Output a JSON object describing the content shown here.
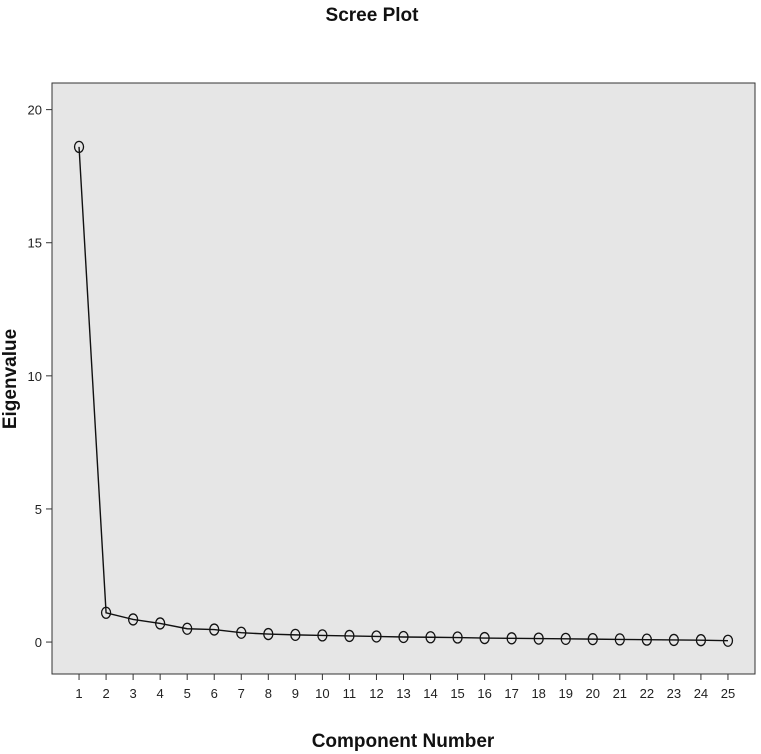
{
  "chart_data": {
    "type": "line",
    "title": "Scree Plot",
    "xlabel": "Component Number",
    "ylabel": "Eigenvalue",
    "x": [
      1,
      2,
      3,
      4,
      5,
      6,
      7,
      8,
      9,
      10,
      11,
      12,
      13,
      14,
      15,
      16,
      17,
      18,
      19,
      20,
      21,
      22,
      23,
      24,
      25
    ],
    "series": [
      {
        "name": "",
        "values": [
          18.6,
          1.1,
          0.85,
          0.7,
          0.5,
          0.47,
          0.35,
          0.3,
          0.27,
          0.25,
          0.23,
          0.21,
          0.19,
          0.18,
          0.17,
          0.15,
          0.14,
          0.13,
          0.12,
          0.11,
          0.1,
          0.09,
          0.08,
          0.07,
          0.05
        ]
      }
    ],
    "xticks": [
      "1",
      "2",
      "3",
      "4",
      "5",
      "6",
      "7",
      "8",
      "9",
      "10",
      "11",
      "12",
      "13",
      "14",
      "15",
      "16",
      "17",
      "18",
      "19",
      "20",
      "21",
      "22",
      "23",
      "24",
      "25"
    ],
    "yticks": [
      "0",
      "5",
      "10",
      "15",
      "20"
    ],
    "xlim": [
      0,
      26
    ],
    "ylim": [
      -1.2,
      21
    ],
    "grid": false,
    "legend": "none",
    "colors": {
      "plot_background": "#e6e6e6",
      "plot_border": "#333333",
      "line": "#111111",
      "marker_stroke": "#111111"
    }
  }
}
